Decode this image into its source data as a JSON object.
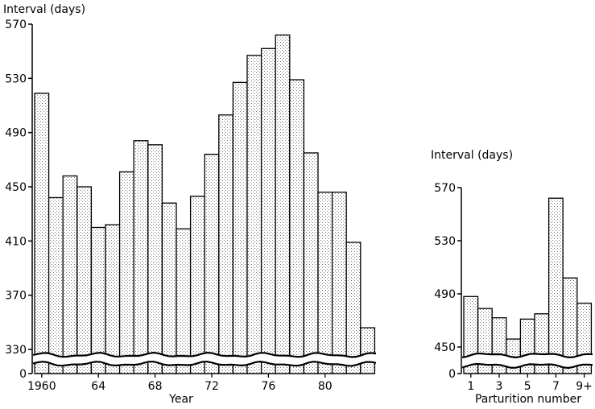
{
  "chart_data": [
    {
      "type": "bar",
      "ylabel": "Interval (days)",
      "xlabel": "Year",
      "yticks": [
        0,
        330,
        370,
        410,
        450,
        490,
        530,
        570
      ],
      "axis_break": true,
      "categories": [
        "1960",
        "1961",
        "1962",
        "1963",
        "1964",
        "1965",
        "1966",
        "1967",
        "1968",
        "1969",
        "1970",
        "1971",
        "1972",
        "1973",
        "1974",
        "1975",
        "1976",
        "1977",
        "1978",
        "1979",
        "1980",
        "1981",
        "1982",
        "1983"
      ],
      "xtick_labels": [
        "1960",
        "64",
        "68",
        "72",
        "76",
        "80"
      ],
      "values": [
        519,
        442,
        458,
        450,
        420,
        422,
        461,
        484,
        481,
        438,
        419,
        443,
        474,
        503,
        527,
        547,
        552,
        562,
        529,
        475,
        446,
        446,
        409,
        346
      ]
    },
    {
      "type": "bar",
      "ylabel": "Interval (days)",
      "xlabel": "Parturition number",
      "yticks": [
        0,
        450,
        490,
        530,
        570
      ],
      "axis_break": true,
      "categories": [
        "1",
        "2",
        "3",
        "4",
        "5",
        "6",
        "7",
        "8",
        "9+"
      ],
      "xtick_labels": [
        "1",
        "3",
        "5",
        "7",
        "9+"
      ],
      "values": [
        488,
        479,
        472,
        456,
        471,
        475,
        562,
        502,
        483
      ]
    }
  ]
}
